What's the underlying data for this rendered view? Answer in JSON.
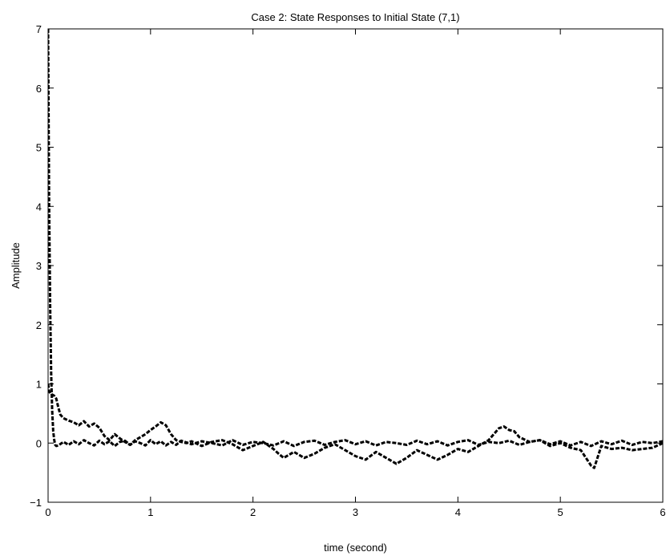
{
  "chart_data": {
    "type": "line",
    "title": "Case 2: State Responses to Initial State (7,1)",
    "xlabel": "time (second)",
    "ylabel": "Amplitude",
    "xlim": [
      0,
      6
    ],
    "ylim": [
      -1,
      7
    ],
    "xticks": [
      "0",
      "1",
      "2",
      "3",
      "4",
      "5",
      "6"
    ],
    "yticks": [
      "−1",
      "0",
      "1",
      "2",
      "3",
      "4",
      "5",
      "6",
      "7"
    ],
    "grid": false,
    "legend": "none",
    "line_color": "#000000",
    "line_style": "dashed",
    "series": [
      {
        "x": [
          0,
          0.005,
          0.01,
          0.02,
          0.03,
          0.04,
          0.05,
          0.06,
          0.07,
          0.08,
          0.1,
          0.15,
          0.2,
          0.25,
          0.3,
          0.35,
          0.4,
          0.45,
          0.5,
          0.55,
          0.6,
          0.65,
          0.7,
          0.75,
          0.8,
          0.85,
          0.9,
          0.95,
          1.0,
          1.05,
          1.1,
          1.15,
          1.2,
          1.25,
          1.3,
          1.4,
          1.5,
          1.6,
          1.7,
          1.8,
          1.9,
          2.0,
          2.1,
          2.2,
          2.3,
          2.4,
          2.5,
          2.6,
          2.7,
          2.8,
          2.9,
          3.0,
          3.1,
          3.2,
          3.3,
          3.4,
          3.5,
          3.6,
          3.7,
          3.8,
          3.9,
          4.0,
          4.1,
          4.2,
          4.3,
          4.4,
          4.5,
          4.6,
          4.7,
          4.8,
          4.9,
          5.0,
          5.1,
          5.2,
          5.3,
          5.4,
          5.5,
          5.6,
          5.7,
          5.8,
          5.9,
          6.0
        ],
        "values": [
          7,
          5.6,
          4.0,
          2.3,
          1.2,
          0.55,
          0.2,
          0.05,
          -0.03,
          -0.05,
          -0.04,
          0.02,
          -0.03,
          0.03,
          -0.02,
          0.05,
          0.0,
          -0.04,
          0.04,
          -0.02,
          0.03,
          -0.05,
          0.02,
          0.04,
          -0.03,
          0.03,
          0.0,
          -0.04,
          0.05,
          -0.02,
          0.03,
          -0.04,
          0.02,
          -0.03,
          0.04,
          -0.02,
          0.03,
          0.0,
          -0.04,
          0.05,
          -0.03,
          0.02,
          0.0,
          -0.04,
          0.03,
          -0.05,
          0.02,
          0.04,
          -0.03,
          0.02,
          0.05,
          -0.02,
          0.03,
          -0.04,
          0.02,
          0.0,
          -0.03,
          0.04,
          -0.02,
          0.03,
          -0.04,
          0.02,
          0.05,
          -0.03,
          0.02,
          0.0,
          0.04,
          -0.03,
          0.02,
          0.05,
          -0.02,
          0.03,
          -0.04,
          0.02,
          -0.05,
          0.03,
          -0.02,
          0.04,
          -0.03,
          0.02,
          0.0,
          0.03
        ]
      },
      {
        "x": [
          0,
          0.01,
          0.02,
          0.04,
          0.06,
          0.08,
          0.1,
          0.12,
          0.15,
          0.2,
          0.25,
          0.3,
          0.35,
          0.4,
          0.45,
          0.5,
          0.55,
          0.6,
          0.65,
          0.7,
          0.75,
          0.8,
          0.85,
          0.9,
          0.95,
          1.0,
          1.05,
          1.1,
          1.15,
          1.2,
          1.25,
          1.3,
          1.35,
          1.4,
          1.5,
          1.6,
          1.7,
          1.8,
          1.9,
          2.0,
          2.1,
          2.2,
          2.25,
          2.3,
          2.4,
          2.5,
          2.6,
          2.7,
          2.8,
          2.9,
          3.0,
          3.1,
          3.2,
          3.3,
          3.4,
          3.5,
          3.6,
          3.7,
          3.8,
          3.9,
          4.0,
          4.1,
          4.2,
          4.3,
          4.4,
          4.45,
          4.5,
          4.55,
          4.6,
          4.7,
          4.8,
          4.9,
          5.0,
          5.1,
          5.2,
          5.25,
          5.3,
          5.33,
          5.4,
          5.5,
          5.6,
          5.7,
          5.8,
          5.9,
          6.0
        ],
        "values": [
          1.0,
          0.88,
          0.84,
          0.82,
          0.8,
          0.75,
          0.6,
          0.48,
          0.42,
          0.38,
          0.35,
          0.3,
          0.37,
          0.28,
          0.33,
          0.26,
          0.12,
          0.05,
          0.15,
          0.08,
          0.02,
          -0.03,
          0.05,
          0.1,
          0.15,
          0.22,
          0.28,
          0.35,
          0.3,
          0.15,
          0.05,
          0.02,
          0.0,
          0.03,
          -0.05,
          0.02,
          0.05,
          -0.02,
          -0.12,
          -0.05,
          0.02,
          -0.1,
          -0.18,
          -0.25,
          -0.15,
          -0.25,
          -0.18,
          -0.08,
          -0.02,
          -0.12,
          -0.22,
          -0.28,
          -0.15,
          -0.25,
          -0.35,
          -0.25,
          -0.12,
          -0.2,
          -0.28,
          -0.2,
          -0.1,
          -0.15,
          -0.05,
          0.05,
          0.25,
          0.28,
          0.22,
          0.2,
          0.1,
          0.02,
          0.05,
          -0.05,
          0.0,
          -0.08,
          -0.12,
          -0.25,
          -0.38,
          -0.42,
          -0.05,
          -0.1,
          -0.08,
          -0.12,
          -0.1,
          -0.08,
          0.0
        ]
      }
    ]
  }
}
